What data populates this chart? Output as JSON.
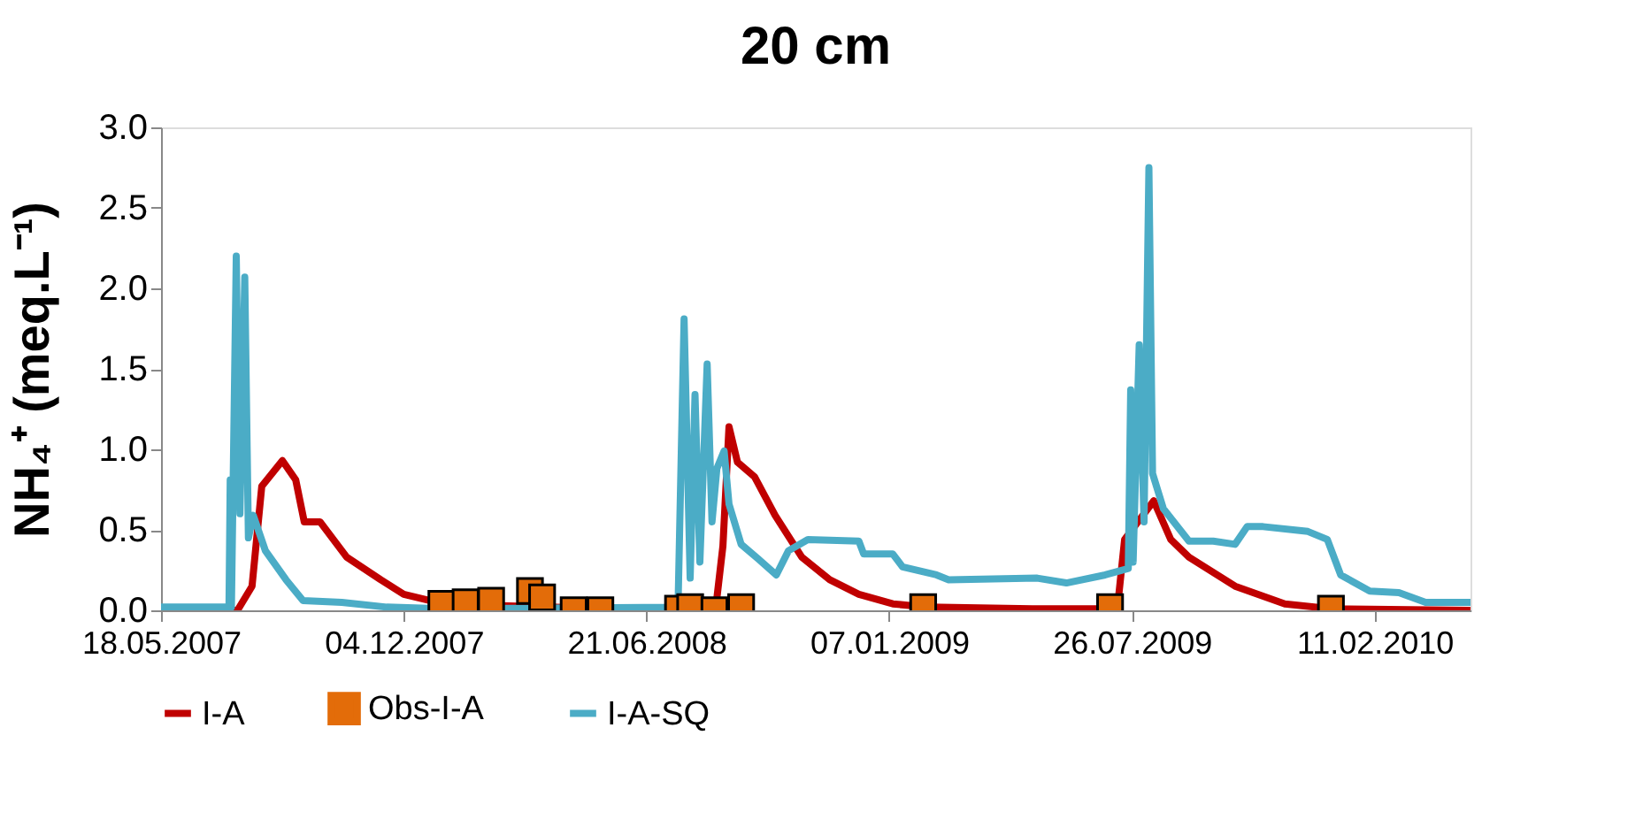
{
  "chart_data": {
    "type": "line",
    "title": "20 cm",
    "ylabel": "NH₄⁺ (meq.L⁻¹)",
    "xlim": [
      "2007-05-18",
      "2010-05-01"
    ],
    "xticks": [
      {
        "value": "2007-05-18",
        "label": "18.05.2007"
      },
      {
        "value": "2007-12-04",
        "label": "04.12.2007"
      },
      {
        "value": "2008-06-21",
        "label": "21.06.2008"
      },
      {
        "value": "2009-01-07",
        "label": "07.01.2009"
      },
      {
        "value": "2009-07-26",
        "label": "26.07.2009"
      },
      {
        "value": "2010-02-11",
        "label": "11.02.2010"
      }
    ],
    "ylim": [
      0,
      3
    ],
    "yticks": [
      {
        "value": 0,
        "label": "0.0"
      },
      {
        "value": 0.5,
        "label": "0.5"
      },
      {
        "value": 1,
        "label": "1.0"
      },
      {
        "value": 1.5,
        "label": "1.5"
      },
      {
        "value": 2,
        "label": "2.0"
      },
      {
        "value": 2.5,
        "label": "2.5"
      },
      {
        "value": 3,
        "label": "3.0"
      }
    ],
    "grid": false,
    "legend": "bottom",
    "series": [
      {
        "name": "I-A",
        "color": "#c00000",
        "x": [
          "2007-05-18",
          "2007-07-20",
          "2007-08-01",
          "2007-08-09",
          "2007-08-26",
          "2007-09-06",
          "2007-09-13",
          "2007-09-26",
          "2007-10-18",
          "2007-11-15",
          "2007-12-04",
          "2007-12-26",
          "2008-02-16",
          "2008-05-23",
          "2008-08-17",
          "2008-08-23",
          "2008-08-28",
          "2008-09-04",
          "2008-09-18",
          "2008-10-05",
          "2008-10-27",
          "2008-11-19",
          "2008-12-13",
          "2009-01-10",
          "2009-02-07",
          "2009-05-05",
          "2009-07-14",
          "2009-07-20",
          "2009-08-13",
          "2009-08-27",
          "2009-09-11",
          "2009-10-19",
          "2009-11-29",
          "2010-01-06",
          "2010-05-01"
        ],
        "values": [
          0,
          0,
          0.15,
          0.77,
          0.93,
          0.81,
          0.55,
          0.55,
          0.33,
          0.19,
          0.1,
          0.06,
          0.03,
          0.01,
          0.01,
          0.4,
          1.14,
          0.92,
          0.83,
          0.59,
          0.33,
          0.19,
          0.1,
          0.04,
          0.02,
          0.01,
          0.01,
          0.44,
          0.68,
          0.44,
          0.33,
          0.15,
          0.04,
          0.01,
          0
        ]
      },
      {
        "name": "Obs-I-A",
        "type": "scatter",
        "marker": "square",
        "color": "#e36c09",
        "x": [
          "2008-01-04",
          "2008-01-24",
          "2008-02-14",
          "2008-03-17",
          "2008-03-27",
          "2008-04-22",
          "2008-05-14",
          "2008-07-17",
          "2008-07-27",
          "2008-08-16",
          "2008-09-07",
          "2009-02-04",
          "2009-07-08",
          "2010-01-06"
        ],
        "values": [
          0.04,
          0.05,
          0.06,
          0.12,
          0.08,
          0,
          0,
          0.01,
          0.02,
          0,
          0.02,
          0.02,
          0.02,
          0.01
        ]
      },
      {
        "name": "I-A-SQ",
        "color": "#4bacc6",
        "x": [
          "2007-05-18",
          "2007-07-13",
          "2007-07-14",
          "2007-07-15",
          "2007-07-19",
          "2007-07-22",
          "2007-07-26",
          "2007-07-29",
          "2007-08-02",
          "2007-08-12",
          "2007-08-29",
          "2007-09-12",
          "2007-10-14",
          "2007-11-20",
          "2008-01-05",
          "2008-07-17",
          "2008-07-22",
          "2008-07-27",
          "2008-07-31",
          "2008-08-04",
          "2008-08-10",
          "2008-08-14",
          "2008-08-18",
          "2008-08-24",
          "2008-08-28",
          "2008-09-07",
          "2008-09-21",
          "2008-10-06",
          "2008-10-16",
          "2008-11-01",
          "2008-12-13",
          "2008-12-17",
          "2009-01-10",
          "2009-01-18",
          "2009-02-15",
          "2009-02-25",
          "2009-05-09",
          "2009-06-02",
          "2009-07-04",
          "2009-07-23",
          "2009-07-25",
          "2009-07-27",
          "2009-08-01",
          "2009-08-05",
          "2009-08-09",
          "2009-08-12",
          "2009-08-21",
          "2009-09-11",
          "2009-10-01",
          "2009-10-19",
          "2009-10-29",
          "2009-11-11",
          "2009-12-18",
          "2010-01-03",
          "2010-01-14",
          "2010-02-07",
          "2010-03-03",
          "2010-03-25",
          "2010-05-01"
        ],
        "values": [
          0.02,
          0.02,
          0.81,
          0.02,
          2.2,
          0.6,
          2.07,
          0.45,
          0.59,
          0.37,
          0.19,
          0.06,
          0.05,
          0.02,
          0.01,
          0.02,
          1.81,
          0.2,
          1.34,
          0.3,
          1.53,
          0.55,
          0.88,
          0.99,
          0.66,
          0.41,
          0.32,
          0.22,
          0.37,
          0.44,
          0.43,
          0.35,
          0.35,
          0.27,
          0.22,
          0.19,
          0.2,
          0.17,
          0.22,
          0.26,
          1.37,
          0.3,
          1.65,
          0.55,
          2.75,
          0.85,
          0.63,
          0.43,
          0.43,
          0.41,
          0.52,
          0.52,
          0.49,
          0.44,
          0.22,
          0.12,
          0.11,
          0.05,
          0.05
        ]
      }
    ]
  }
}
